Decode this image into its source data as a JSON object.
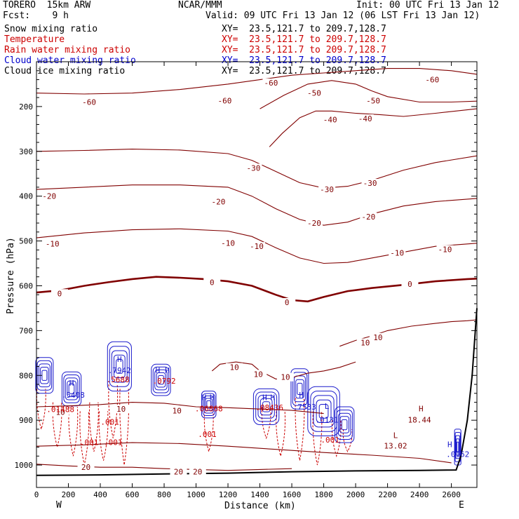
{
  "header": {
    "model": "TORERO  15km ARW",
    "center": "NCAR/MMM",
    "init": "Init: 00 UTC Fri 13 Jan 12",
    "fcst": "Fcst:    9 h",
    "valid": "Valid: 09 UTC Fri 13 Jan 12 (06 LST Fri 13 Jan 12)"
  },
  "fields": [
    {
      "name": "Snow mixing ratio",
      "color": "#000000",
      "xy": "XY=  23.5,121.7 to 209.7,128.7",
      "xy_color": "#000000"
    },
    {
      "name": "Temperature",
      "color": "#cc0000",
      "xy": "XY=  23.5,121.7 to 209.7,128.7",
      "xy_color": "#cc0000"
    },
    {
      "name": "Rain water mixing ratio",
      "color": "#cc0000",
      "xy": "XY=  23.5,121.7 to 209.7,128.7",
      "xy_color": "#cc0000"
    },
    {
      "name": "Cloud water mixing ratio",
      "color": "#0000cc",
      "xy": "XY=  23.5,121.7 to 209.7,128.7",
      "xy_color": "#0000cc"
    },
    {
      "name": "Cloud ice mixing ratio",
      "color": "#000000",
      "xy": "XY=  23.5,121.7 to 209.7,128.7",
      "xy_color": "#000000"
    }
  ],
  "chart_data": {
    "type": "contour cross-section",
    "xlabel": "Distance (km)",
    "ylabel": "Pressure (hPa)",
    "xlim": [
      0,
      2760
    ],
    "ylim": [
      1050,
      100
    ],
    "x_ticks": [
      0,
      200,
      400,
      600,
      800,
      1000,
      1200,
      1400,
      1600,
      1800,
      2000,
      2200,
      2400,
      2600
    ],
    "y_ticks": [
      200,
      300,
      400,
      500,
      600,
      700,
      800,
      900,
      1000
    ],
    "x_end_labels": [
      "W",
      "E"
    ],
    "temperature_color": "#800000",
    "rain_color": "#cc0000",
    "cloud_water_color": "#1a1acc",
    "terrain_color": "#000000",
    "temperature_contours": [
      {
        "value": -60,
        "points": [
          [
            0,
            170
          ],
          [
            300,
            172
          ],
          [
            600,
            170
          ],
          [
            900,
            162
          ],
          [
            1200,
            150
          ],
          [
            1400,
            140
          ],
          [
            1600,
            130
          ],
          [
            1800,
            125
          ],
          [
            2000,
            120
          ],
          [
            2200,
            115
          ],
          [
            2400,
            115
          ],
          [
            2600,
            120
          ],
          [
            2760,
            128
          ]
        ]
      },
      {
        "value": -50,
        "points": [
          [
            1400,
            205
          ],
          [
            1550,
            175
          ],
          [
            1700,
            150
          ],
          [
            1850,
            142
          ],
          [
            2000,
            150
          ],
          [
            2100,
            165
          ],
          [
            2200,
            178
          ],
          [
            2400,
            190
          ],
          [
            2600,
            190
          ],
          [
            2760,
            188
          ]
        ]
      },
      {
        "value": -40,
        "points": [
          [
            1460,
            290
          ],
          [
            1540,
            260
          ],
          [
            1650,
            225
          ],
          [
            1750,
            210
          ],
          [
            1850,
            210
          ],
          [
            2000,
            215
          ],
          [
            2150,
            218
          ],
          [
            2300,
            222
          ],
          [
            2500,
            215
          ],
          [
            2760,
            205
          ]
        ]
      },
      {
        "value": -30,
        "points": [
          [
            0,
            300
          ],
          [
            300,
            298
          ],
          [
            600,
            295
          ],
          [
            900,
            297
          ],
          [
            1200,
            305
          ],
          [
            1350,
            320
          ],
          [
            1500,
            345
          ],
          [
            1650,
            370
          ],
          [
            1800,
            382
          ],
          [
            1950,
            378
          ],
          [
            2100,
            365
          ],
          [
            2300,
            342
          ],
          [
            2500,
            325
          ],
          [
            2760,
            310
          ]
        ]
      },
      {
        "value": -20,
        "points": [
          [
            0,
            385
          ],
          [
            300,
            380
          ],
          [
            600,
            375
          ],
          [
            900,
            375
          ],
          [
            1200,
            380
          ],
          [
            1350,
            400
          ],
          [
            1500,
            428
          ],
          [
            1650,
            452
          ],
          [
            1800,
            465
          ],
          [
            1950,
            458
          ],
          [
            2100,
            440
          ],
          [
            2300,
            422
          ],
          [
            2500,
            412
          ],
          [
            2760,
            405
          ]
        ]
      },
      {
        "value": -10,
        "points": [
          [
            0,
            493
          ],
          [
            300,
            482
          ],
          [
            600,
            475
          ],
          [
            900,
            473
          ],
          [
            1200,
            478
          ],
          [
            1350,
            490
          ],
          [
            1500,
            515
          ],
          [
            1650,
            538
          ],
          [
            1800,
            550
          ],
          [
            1950,
            548
          ],
          [
            2100,
            538
          ],
          [
            2300,
            525
          ],
          [
            2500,
            512
          ],
          [
            2760,
            505
          ]
        ]
      },
      {
        "value": 0,
        "points": [
          [
            0,
            615
          ],
          [
            150,
            610
          ],
          [
            300,
            600
          ],
          [
            450,
            592
          ],
          [
            600,
            585
          ],
          [
            750,
            580
          ],
          [
            900,
            582
          ],
          [
            1050,
            585
          ],
          [
            1200,
            590
          ],
          [
            1350,
            600
          ],
          [
            1500,
            620
          ],
          [
            1600,
            632
          ],
          [
            1700,
            635
          ],
          [
            1800,
            625
          ],
          [
            1950,
            612
          ],
          [
            2100,
            605
          ],
          [
            2300,
            598
          ],
          [
            2500,
            590
          ],
          [
            2700,
            585
          ],
          [
            2760,
            584
          ]
        ]
      },
      {
        "value": 10,
        "points": [
          [
            1900,
            735
          ],
          [
            2000,
            722
          ],
          [
            2100,
            712
          ],
          [
            2200,
            700
          ],
          [
            2350,
            690
          ],
          [
            2500,
            684
          ],
          [
            2600,
            680
          ],
          [
            2700,
            678
          ],
          [
            2760,
            676
          ]
        ]
      },
      {
        "value": 10,
        "points": [
          [
            1100,
            790
          ],
          [
            1150,
            775
          ],
          [
            1250,
            770
          ],
          [
            1350,
            775
          ],
          [
            1400,
            790
          ],
          [
            1500,
            808
          ],
          [
            1600,
            805
          ],
          [
            1700,
            795
          ],
          [
            1800,
            790
          ],
          [
            1900,
            782
          ],
          [
            2000,
            770
          ]
        ]
      },
      {
        "value": 10,
        "points": [
          [
            0,
            870
          ],
          [
            200,
            868
          ],
          [
            400,
            865
          ],
          [
            600,
            860
          ],
          [
            800,
            862
          ],
          [
            1000,
            870
          ],
          [
            1200,
            872
          ],
          [
            1400,
            875
          ],
          [
            1600,
            878
          ],
          [
            1800,
            885
          ]
        ]
      },
      {
        "value": 20,
        "points": [
          [
            0,
            998
          ],
          [
            200,
            1002
          ],
          [
            400,
            1005
          ],
          [
            600,
            1005
          ],
          [
            800,
            1008
          ],
          [
            1000,
            1010
          ],
          [
            1200,
            1012
          ],
          [
            1400,
            1010
          ],
          [
            1600,
            1008
          ]
        ]
      },
      {
        "value": 20,
        "points": [
          [
            0,
            958
          ],
          [
            300,
            955
          ],
          [
            600,
            950
          ],
          [
            900,
            952
          ],
          [
            1200,
            958
          ],
          [
            1500,
            965
          ],
          [
            1800,
            972
          ],
          [
            2100,
            978
          ],
          [
            2400,
            985
          ],
          [
            2600,
            995
          ]
        ]
      }
    ],
    "temperature_labels": [
      {
        "text": "-60",
        "x": 330,
        "y": 193
      },
      {
        "text": "-60",
        "x": 1180,
        "y": 190
      },
      {
        "text": "-60",
        "x": 1470,
        "y": 150
      },
      {
        "text": "-60",
        "x": 2480,
        "y": 143
      },
      {
        "text": "-50",
        "x": 1740,
        "y": 173
      },
      {
        "text": "-50",
        "x": 2110,
        "y": 190
      },
      {
        "text": "-40",
        "x": 1840,
        "y": 232
      },
      {
        "text": "-40",
        "x": 2060,
        "y": 230
      },
      {
        "text": "-30",
        "x": 1360,
        "y": 340
      },
      {
        "text": "-30",
        "x": 1820,
        "y": 388
      },
      {
        "text": "-30",
        "x": 2090,
        "y": 374
      },
      {
        "text": "-20",
        "x": 80,
        "y": 403
      },
      {
        "text": "-20",
        "x": 1140,
        "y": 415
      },
      {
        "text": "-20",
        "x": 1740,
        "y": 463
      },
      {
        "text": "-20",
        "x": 2080,
        "y": 449
      },
      {
        "text": "-10",
        "x": 100,
        "y": 509
      },
      {
        "text": "-10",
        "x": 1200,
        "y": 508
      },
      {
        "text": "-10",
        "x": 1380,
        "y": 515
      },
      {
        "text": "-10",
        "x": 2260,
        "y": 530
      },
      {
        "text": "-10",
        "x": 2560,
        "y": 522
      },
      {
        "text": "0",
        "x": 145,
        "y": 620
      },
      {
        "text": "0",
        "x": 1100,
        "y": 595
      },
      {
        "text": "0",
        "x": 1570,
        "y": 640
      },
      {
        "text": "0",
        "x": 2340,
        "y": 599
      },
      {
        "text": "10",
        "x": 2060,
        "y": 730
      },
      {
        "text": "10",
        "x": 2140,
        "y": 718
      },
      {
        "text": "10",
        "x": 1240,
        "y": 785
      },
      {
        "text": "10",
        "x": 1390,
        "y": 800
      },
      {
        "text": "10",
        "x": 1560,
        "y": 807
      },
      {
        "text": "10",
        "x": 150,
        "y": 885
      },
      {
        "text": "10",
        "x": 530,
        "y": 878
      },
      {
        "text": "10",
        "x": 880,
        "y": 882
      },
      {
        "text": "20",
        "x": 310,
        "y": 1008
      },
      {
        "text": "20",
        "x": 890,
        "y": 1018
      },
      {
        "text": "20",
        "x": 1010,
        "y": 1018
      }
    ],
    "annotations": [
      {
        "text": "H",
        "x": 2410,
        "y": 880,
        "color": "#800000"
      },
      {
        "text": "18.44",
        "x": 2400,
        "y": 905,
        "color": "#800000"
      },
      {
        "text": "L",
        "x": 2250,
        "y": 940,
        "color": "#800000"
      },
      {
        "text": "13.02",
        "x": 2250,
        "y": 963,
        "color": "#800000"
      },
      {
        "text": "H",
        "x": 2590,
        "y": 960,
        "color": "#1a1acc"
      },
      {
        "text": ".0162",
        "x": 2640,
        "y": 982,
        "color": "#1a1acc"
      },
      {
        "text": "H",
        "x": 220,
        "y": 823,
        "color": "#1a1acc"
      },
      {
        "text": ".5408",
        "x": 230,
        "y": 850,
        "color": "#1a1acc"
      },
      {
        "text": "H",
        "x": 520,
        "y": 770,
        "color": "#1a1acc"
      },
      {
        "text": ".7942",
        "x": 520,
        "y": 795,
        "color": "#1a1acc"
      },
      {
        "text": ".5688",
        "x": 510,
        "y": 815,
        "color": "#cc0000"
      },
      {
        "text": "H",
        "x": 760,
        "y": 795,
        "color": "#1a1acc"
      },
      {
        "text": "H",
        "x": 820,
        "y": 795,
        "color": "#1a1acc"
      },
      {
        "text": ".0792",
        "x": 800,
        "y": 818,
        "color": "#cc0000"
      },
      {
        "text": "H",
        "x": 1050,
        "y": 855,
        "color": "#1a1acc"
      },
      {
        "text": "H",
        "x": 1100,
        "y": 855,
        "color": "#1a1acc"
      },
      {
        "text": ".06868",
        "x": 1080,
        "y": 880,
        "color": "#cc0000"
      },
      {
        "text": "H",
        "x": 1430,
        "y": 855,
        "color": "#1a1acc"
      },
      {
        "text": "H",
        "x": 1480,
        "y": 855,
        "color": "#1a1acc"
      },
      {
        "text": ".08436",
        "x": 1460,
        "y": 878,
        "color": "#cc0000"
      },
      {
        "text": "H",
        "x": 1660,
        "y": 850,
        "color": "#1a1acc"
      },
      {
        "text": ".7533",
        "x": 1680,
        "y": 876,
        "color": "#1a1acc"
      },
      {
        "text": "L",
        "x": 1820,
        "y": 875,
        "color": "#1a1acc"
      },
      {
        "text": ".0131",
        "x": 1820,
        "y": 905,
        "color": "#1a1acc"
      },
      {
        "text": ".01488",
        "x": 150,
        "y": 882,
        "color": "#cc0000"
      },
      {
        "text": ".001",
        "x": 460,
        "y": 910,
        "color": "#cc0000"
      },
      {
        "text": ".001",
        "x": 330,
        "y": 955,
        "color": "#cc0000"
      },
      {
        "text": ".001",
        "x": 480,
        "y": 955,
        "color": "#cc0000"
      },
      {
        "text": ".001",
        "x": 1070,
        "y": 937,
        "color": "#cc0000"
      },
      {
        "text": ".001",
        "x": 1840,
        "y": 950,
        "color": "#cc0000"
      }
    ],
    "terrain": [
      [
        0,
        1023
      ],
      [
        400,
        1022
      ],
      [
        800,
        1020
      ],
      [
        1200,
        1018
      ],
      [
        1600,
        1015
      ],
      [
        2000,
        1013
      ],
      [
        2400,
        1012
      ],
      [
        2630,
        1011
      ],
      [
        2660,
        980
      ],
      [
        2700,
        900
      ],
      [
        2730,
        800
      ],
      [
        2750,
        700
      ],
      [
        2760,
        650
      ]
    ],
    "cloud_water_cells": [
      {
        "cx": 50,
        "cy": 800,
        "rx": 55,
        "ry": 40
      },
      {
        "cx": 220,
        "cy": 830,
        "rx": 60,
        "ry": 38
      },
      {
        "cx": 520,
        "cy": 780,
        "rx": 75,
        "ry": 55
      },
      {
        "cx": 780,
        "cy": 810,
        "rx": 60,
        "ry": 35
      },
      {
        "cx": 1080,
        "cy": 865,
        "rx": 45,
        "ry": 30
      },
      {
        "cx": 1440,
        "cy": 870,
        "rx": 80,
        "ry": 40
      },
      {
        "cx": 1650,
        "cy": 830,
        "rx": 55,
        "ry": 45
      },
      {
        "cx": 1800,
        "cy": 880,
        "rx": 100,
        "ry": 55
      },
      {
        "cx": 1930,
        "cy": 910,
        "rx": 60,
        "ry": 40
      },
      {
        "cx": 2640,
        "cy": 960,
        "rx": 20,
        "ry": 40
      }
    ],
    "rain_water_lines": [
      {
        "x": 30,
        "top": 830,
        "bottom": 920
      },
      {
        "x": 130,
        "top": 860,
        "bottom": 960
      },
      {
        "x": 230,
        "top": 870,
        "bottom": 980
      },
      {
        "x": 300,
        "top": 880,
        "bottom": 1000
      },
      {
        "x": 360,
        "top": 860,
        "bottom": 970
      },
      {
        "x": 420,
        "top": 880,
        "bottom": 990
      },
      {
        "x": 480,
        "top": 820,
        "bottom": 940
      },
      {
        "x": 550,
        "top": 830,
        "bottom": 1000
      },
      {
        "x": 1080,
        "top": 880,
        "bottom": 970
      },
      {
        "x": 1440,
        "top": 870,
        "bottom": 940
      },
      {
        "x": 1530,
        "top": 880,
        "bottom": 980
      },
      {
        "x": 1650,
        "top": 850,
        "bottom": 990
      },
      {
        "x": 1760,
        "top": 880,
        "bottom": 1000
      },
      {
        "x": 1880,
        "top": 900,
        "bottom": 980
      },
      {
        "x": 1950,
        "top": 920,
        "bottom": 970
      }
    ]
  }
}
